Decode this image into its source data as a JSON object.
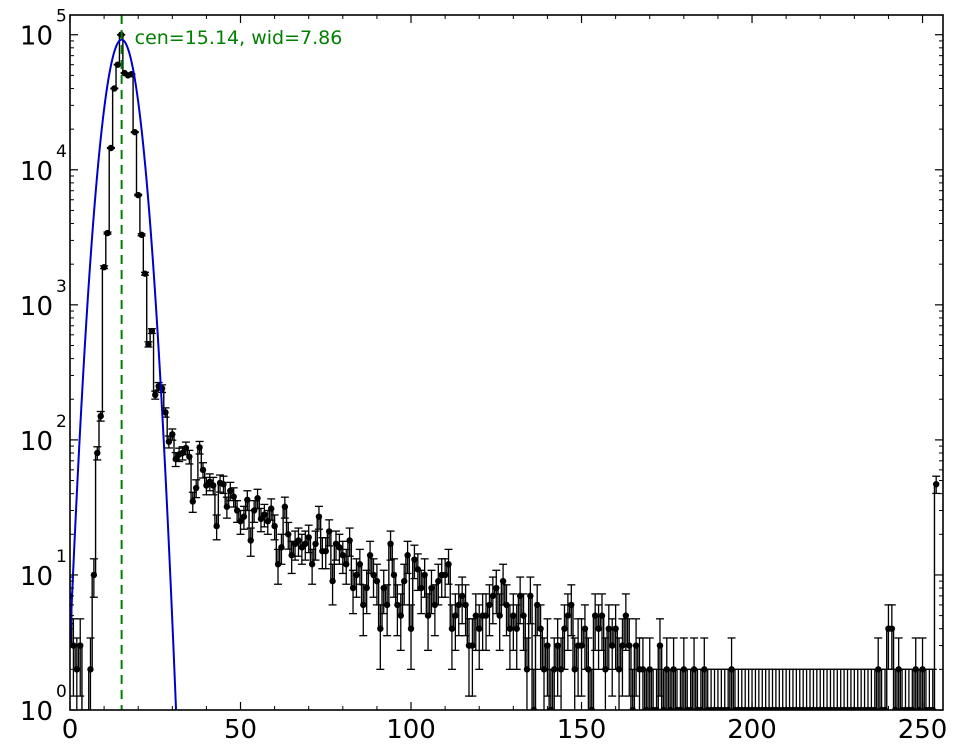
{
  "chart_data": {
    "type": "scatter",
    "title": "",
    "xlabel": "",
    "ylabel": "",
    "xlim": [
      0,
      256
    ],
    "ylim": [
      1,
      140000
    ],
    "yscale": "log",
    "grid": false,
    "legend": "none",
    "x_ticks": [
      "0",
      "50",
      "100",
      "150",
      "200",
      "250"
    ],
    "y_ticks": [
      {
        "base": "10",
        "exp": "0"
      },
      {
        "base": "10",
        "exp": "1"
      },
      {
        "base": "10",
        "exp": "2"
      },
      {
        "base": "10",
        "exp": "3"
      },
      {
        "base": "10",
        "exp": "4"
      },
      {
        "base": "10",
        "exp": "5"
      }
    ],
    "annotation": {
      "text": "cen=15.14, wid=7.86",
      "color": "#008000"
    },
    "center_line": {
      "x": 15.14,
      "color": "#008000",
      "style": "dashed"
    },
    "fit": {
      "type": "gaussian",
      "center": 15.14,
      "width": 7.86,
      "peak": 92000,
      "color": "#0000cc"
    },
    "series": [
      {
        "color": "#000000",
        "points": [
          [
            0,
            7
          ],
          [
            1,
            3
          ],
          [
            2,
            2
          ],
          [
            3,
            3
          ],
          [
            4,
            0
          ],
          [
            5,
            0
          ],
          [
            6,
            2
          ],
          [
            7,
            10
          ],
          [
            8,
            80
          ],
          [
            9,
            150
          ],
          [
            10,
            1900
          ],
          [
            11,
            3400
          ],
          [
            12,
            14500
          ],
          [
            13,
            40000
          ],
          [
            14,
            60000
          ],
          [
            15,
            100000
          ],
          [
            16,
            52000
          ],
          [
            17,
            50000
          ],
          [
            18,
            51000
          ],
          [
            19,
            19000
          ],
          [
            20,
            6500
          ],
          [
            21,
            3300
          ],
          [
            22,
            1700
          ],
          [
            23,
            510
          ],
          [
            24,
            640
          ],
          [
            25,
            215
          ],
          [
            26,
            250
          ],
          [
            27,
            240
          ],
          [
            28,
            160
          ],
          [
            29,
            97
          ],
          [
            30,
            110
          ],
          [
            31,
            72
          ],
          [
            32,
            78
          ],
          [
            33,
            80
          ],
          [
            34,
            87
          ],
          [
            35,
            75
          ],
          [
            36,
            35
          ],
          [
            37,
            44
          ],
          [
            38,
            88
          ],
          [
            39,
            60
          ],
          [
            40,
            46
          ],
          [
            41,
            49
          ],
          [
            42,
            46
          ],
          [
            43,
            23
          ],
          [
            44,
            48
          ],
          [
            45,
            47
          ],
          [
            46,
            32
          ],
          [
            47,
            42
          ],
          [
            48,
            38
          ],
          [
            49,
            30
          ],
          [
            50,
            25
          ],
          [
            51,
            27
          ],
          [
            52,
            36
          ],
          [
            53,
            18
          ],
          [
            54,
            30
          ],
          [
            55,
            37
          ],
          [
            56,
            26
          ],
          [
            57,
            28
          ],
          [
            58,
            25
          ],
          [
            59,
            31
          ],
          [
            60,
            23
          ],
          [
            61,
            12
          ],
          [
            62,
            16
          ],
          [
            63,
            32
          ],
          [
            64,
            20
          ],
          [
            65,
            14
          ],
          [
            66,
            17
          ],
          [
            67,
            18
          ],
          [
            68,
            16
          ],
          [
            69,
            17
          ],
          [
            70,
            19
          ],
          [
            71,
            12
          ],
          [
            72,
            17
          ],
          [
            73,
            27
          ],
          [
            74,
            15
          ],
          [
            75,
            15
          ],
          [
            76,
            21
          ],
          [
            77,
            9
          ],
          [
            78,
            17
          ],
          [
            79,
            16
          ],
          [
            80,
            14
          ],
          [
            81,
            12
          ],
          [
            82,
            18
          ],
          [
            83,
            8
          ],
          [
            84,
            10
          ],
          [
            85,
            12
          ],
          [
            86,
            6
          ],
          [
            87,
            8
          ],
          [
            88,
            14
          ],
          [
            89,
            10
          ],
          [
            90,
            9
          ],
          [
            91,
            4
          ],
          [
            92,
            8
          ],
          [
            93,
            6
          ],
          [
            94,
            17
          ],
          [
            95,
            10
          ],
          [
            96,
            6
          ],
          [
            97,
            5
          ],
          [
            98,
            9
          ],
          [
            99,
            14
          ],
          [
            100,
            4
          ],
          [
            101,
            13
          ],
          [
            102,
            11
          ],
          [
            103,
            8
          ],
          [
            104,
            10
          ],
          [
            105,
            5
          ],
          [
            106,
            8
          ],
          [
            107,
            6
          ],
          [
            108,
            9
          ],
          [
            109,
            10
          ],
          [
            110,
            10
          ],
          [
            111,
            12
          ],
          [
            112,
            4
          ],
          [
            113,
            5
          ],
          [
            114,
            6
          ],
          [
            115,
            7
          ],
          [
            116,
            6
          ],
          [
            117,
            3
          ],
          [
            118,
            3
          ],
          [
            119,
            5
          ],
          [
            120,
            4
          ],
          [
            121,
            5
          ],
          [
            122,
            5
          ],
          [
            123,
            6
          ],
          [
            124,
            7
          ],
          [
            125,
            8
          ],
          [
            126,
            5
          ],
          [
            127,
            9
          ],
          [
            128,
            6
          ],
          [
            129,
            4
          ],
          [
            130,
            5
          ],
          [
            131,
            4
          ],
          [
            132,
            7
          ],
          [
            133,
            5
          ],
          [
            134,
            2
          ],
          [
            135,
            7
          ],
          [
            136,
            1
          ],
          [
            137,
            6
          ],
          [
            138,
            4
          ],
          [
            139,
            2
          ],
          [
            140,
            3
          ],
          [
            141,
            1
          ],
          [
            142,
            2
          ],
          [
            143,
            3
          ],
          [
            144,
            2
          ],
          [
            145,
            4
          ],
          [
            146,
            5
          ],
          [
            147,
            6
          ],
          [
            148,
            2
          ],
          [
            149,
            3
          ],
          [
            150,
            3
          ],
          [
            151,
            4
          ],
          [
            152,
            2
          ],
          [
            153,
            1
          ],
          [
            154,
            5
          ],
          [
            155,
            4
          ],
          [
            156,
            5
          ],
          [
            157,
            2
          ],
          [
            158,
            4
          ],
          [
            159,
            3
          ],
          [
            160,
            4
          ],
          [
            161,
            2
          ],
          [
            162,
            3
          ],
          [
            163,
            5
          ],
          [
            164,
            3
          ],
          [
            165,
            1
          ],
          [
            166,
            3
          ],
          [
            167,
            2
          ],
          [
            168,
            2
          ],
          [
            169,
            1
          ],
          [
            170,
            2
          ],
          [
            171,
            1
          ],
          [
            172,
            1
          ],
          [
            173,
            3
          ],
          [
            174,
            1
          ],
          [
            175,
            2
          ],
          [
            176,
            1
          ],
          [
            177,
            2
          ],
          [
            178,
            1
          ],
          [
            179,
            1
          ],
          [
            180,
            2
          ],
          [
            181,
            1
          ],
          [
            182,
            1
          ],
          [
            183,
            2
          ],
          [
            184,
            1
          ],
          [
            185,
            1
          ],
          [
            186,
            2
          ],
          [
            187,
            1
          ],
          [
            188,
            1
          ],
          [
            189,
            1
          ],
          [
            190,
            1
          ],
          [
            191,
            1
          ],
          [
            192,
            1
          ],
          [
            193,
            1
          ],
          [
            194,
            2
          ],
          [
            195,
            1
          ],
          [
            196,
            1
          ],
          [
            197,
            1
          ],
          [
            198,
            1
          ],
          [
            199,
            1
          ],
          [
            200,
            1
          ],
          [
            201,
            1
          ],
          [
            202,
            1
          ],
          [
            203,
            1
          ],
          [
            204,
            1
          ],
          [
            205,
            1
          ],
          [
            206,
            1
          ],
          [
            207,
            1
          ],
          [
            208,
            1
          ],
          [
            209,
            1
          ],
          [
            210,
            1
          ],
          [
            211,
            1
          ],
          [
            212,
            1
          ],
          [
            213,
            1
          ],
          [
            214,
            1
          ],
          [
            215,
            1
          ],
          [
            216,
            1
          ],
          [
            217,
            1
          ],
          [
            218,
            1
          ],
          [
            219,
            1
          ],
          [
            220,
            1
          ],
          [
            221,
            1
          ],
          [
            222,
            1
          ],
          [
            223,
            1
          ],
          [
            224,
            1
          ],
          [
            225,
            1
          ],
          [
            226,
            1
          ],
          [
            227,
            1
          ],
          [
            228,
            1
          ],
          [
            229,
            1
          ],
          [
            230,
            1
          ],
          [
            231,
            1
          ],
          [
            232,
            1
          ],
          [
            233,
            1
          ],
          [
            234,
            1
          ],
          [
            235,
            1
          ],
          [
            236,
            1
          ],
          [
            237,
            2
          ],
          [
            238,
            1
          ],
          [
            239,
            1
          ],
          [
            240,
            4
          ],
          [
            241,
            4
          ],
          [
            242,
            1
          ],
          [
            243,
            2
          ],
          [
            244,
            1
          ],
          [
            245,
            1
          ],
          [
            246,
            1
          ],
          [
            247,
            1
          ],
          [
            248,
            2
          ],
          [
            249,
            1
          ],
          [
            250,
            2
          ],
          [
            251,
            1
          ],
          [
            252,
            1
          ],
          [
            253,
            1
          ],
          [
            254,
            47
          ]
        ]
      }
    ]
  }
}
